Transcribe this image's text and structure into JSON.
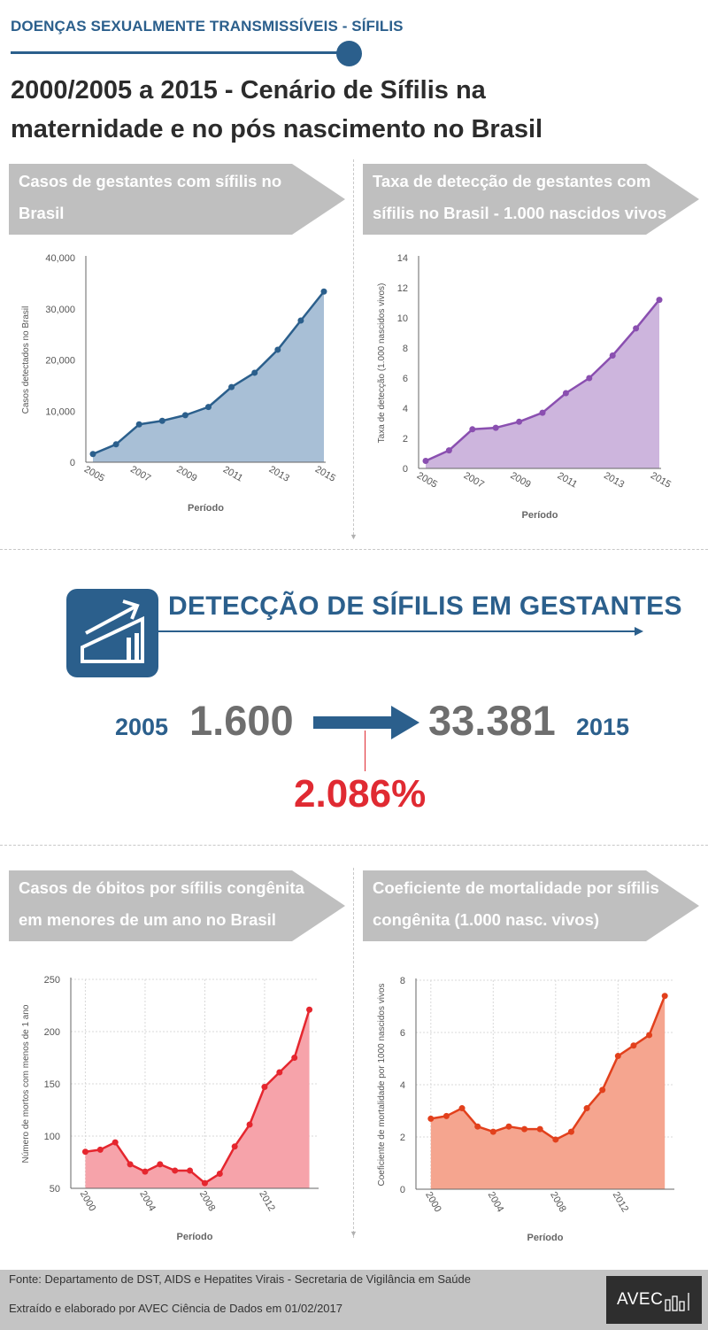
{
  "header": {
    "tag": "DOENÇAS SEXUALMENTE TRANSMISSÍVEIS - SÍFILIS",
    "title_line1": "2000/2005 a 2015 - Cenário de Sífilis na",
    "title_line2": "maternidade e no pós nascimento no Brasil"
  },
  "banners": {
    "b1_line1": "Casos de gestantes com sífilis no",
    "b1_line2": "Brasil",
    "b2_line1": "Taxa de detecção de gestantes com",
    "b2_line2": "sífilis no Brasil - 1.000 nascidos vivos",
    "b3_line1": "Casos de óbitos por sífilis congênita",
    "b3_line2": "em menores de um ano no Brasil",
    "b4_line1": "Coeficiente de mortalidade por sífilis",
    "b4_line2": "congênita (1.000 nasc. vivos)"
  },
  "detection": {
    "title": "DETECÇÃO DE SÍFILIS EM GESTANTES",
    "year_start": "2005",
    "value_start": "1.600",
    "value_end": "33.381",
    "year_end": "2015",
    "growth": "2.086%"
  },
  "footer": {
    "source": "Fonte: Departamento de DST, AIDS e Hepatites Virais - Secretaria de Vigilância em Saúde",
    "credit": "Extraído e elaborado por AVEC Ciência de Dados em  01/02/2017",
    "logo_text": "AVEC"
  },
  "colors": {
    "accent": "#2b5f8c",
    "banner_gray": "#bfbfbf",
    "red": "#e02a32"
  },
  "chart_data": [
    {
      "type": "area",
      "x": [
        2005,
        2006,
        2007,
        2008,
        2009,
        2010,
        2011,
        2012,
        2013,
        2014,
        2015
      ],
      "values": [
        1600,
        3500,
        7400,
        8100,
        9200,
        10800,
        14700,
        17500,
        22000,
        27700,
        33381
      ],
      "ylabel": "Casos detectados no Brasil",
      "xlabel": "Período",
      "ylim": [
        0,
        40000
      ],
      "yticks": [
        "0",
        "10,000",
        "20,000",
        "30,000",
        "40,000"
      ],
      "xticks": [
        "2005",
        "2007",
        "2009",
        "2011",
        "2013",
        "2015"
      ],
      "line_color": "#2b5f8c",
      "fill_color": "#a8bfd6",
      "grid": false
    },
    {
      "type": "area",
      "x": [
        2005,
        2006,
        2007,
        2008,
        2009,
        2010,
        2011,
        2012,
        2013,
        2014,
        2015
      ],
      "values": [
        0.5,
        1.2,
        2.6,
        2.7,
        3.1,
        3.7,
        5.0,
        6.0,
        7.5,
        9.3,
        11.2
      ],
      "ylabel": "Taxa de detecção (1.000 nascidos vivos)",
      "xlabel": "Período",
      "ylim": [
        0,
        14
      ],
      "yticks": [
        "0",
        "2",
        "4",
        "6",
        "8",
        "10",
        "12",
        "14"
      ],
      "xticks": [
        "2005",
        "2007",
        "2009",
        "2011",
        "2013",
        "2015"
      ],
      "line_color": "#8a4fb0",
      "fill_color": "#cdb5dd",
      "grid": false
    },
    {
      "type": "area",
      "x": [
        2000,
        2001,
        2002,
        2003,
        2004,
        2005,
        2006,
        2007,
        2008,
        2009,
        2010,
        2011,
        2012,
        2013,
        2014,
        2015
      ],
      "values": [
        85,
        87,
        94,
        73,
        66,
        73,
        67,
        67,
        55,
        64,
        90,
        111,
        147,
        161,
        175,
        221
      ],
      "ylabel": "Número de mortos com menos de 1 ano",
      "xlabel": "Período",
      "ylim": [
        50,
        250
      ],
      "yticks": [
        "50",
        "100",
        "150",
        "200",
        "250"
      ],
      "xticks": [
        "2000",
        "2004",
        "2008",
        "2012"
      ],
      "line_color": "#e5262e",
      "fill_color": "#f6a3aa",
      "grid": true
    },
    {
      "type": "area",
      "x": [
        2000,
        2001,
        2002,
        2003,
        2004,
        2005,
        2006,
        2007,
        2008,
        2009,
        2010,
        2011,
        2012,
        2013,
        2014,
        2015
      ],
      "values": [
        2.7,
        2.8,
        3.1,
        2.4,
        2.2,
        2.4,
        2.3,
        2.3,
        1.9,
        2.2,
        3.1,
        3.8,
        5.1,
        5.5,
        5.9,
        7.4
      ],
      "ylabel": "Coeficiente de mortalidade por 1000 nascidos vivos",
      "xlabel": "Período",
      "ylim": [
        0,
        8
      ],
      "yticks": [
        "0",
        "2",
        "4",
        "6",
        "8"
      ],
      "xticks": [
        "2000",
        "2004",
        "2008",
        "2012"
      ],
      "line_color": "#e2401c",
      "fill_color": "#f5a58f",
      "grid": true
    }
  ]
}
